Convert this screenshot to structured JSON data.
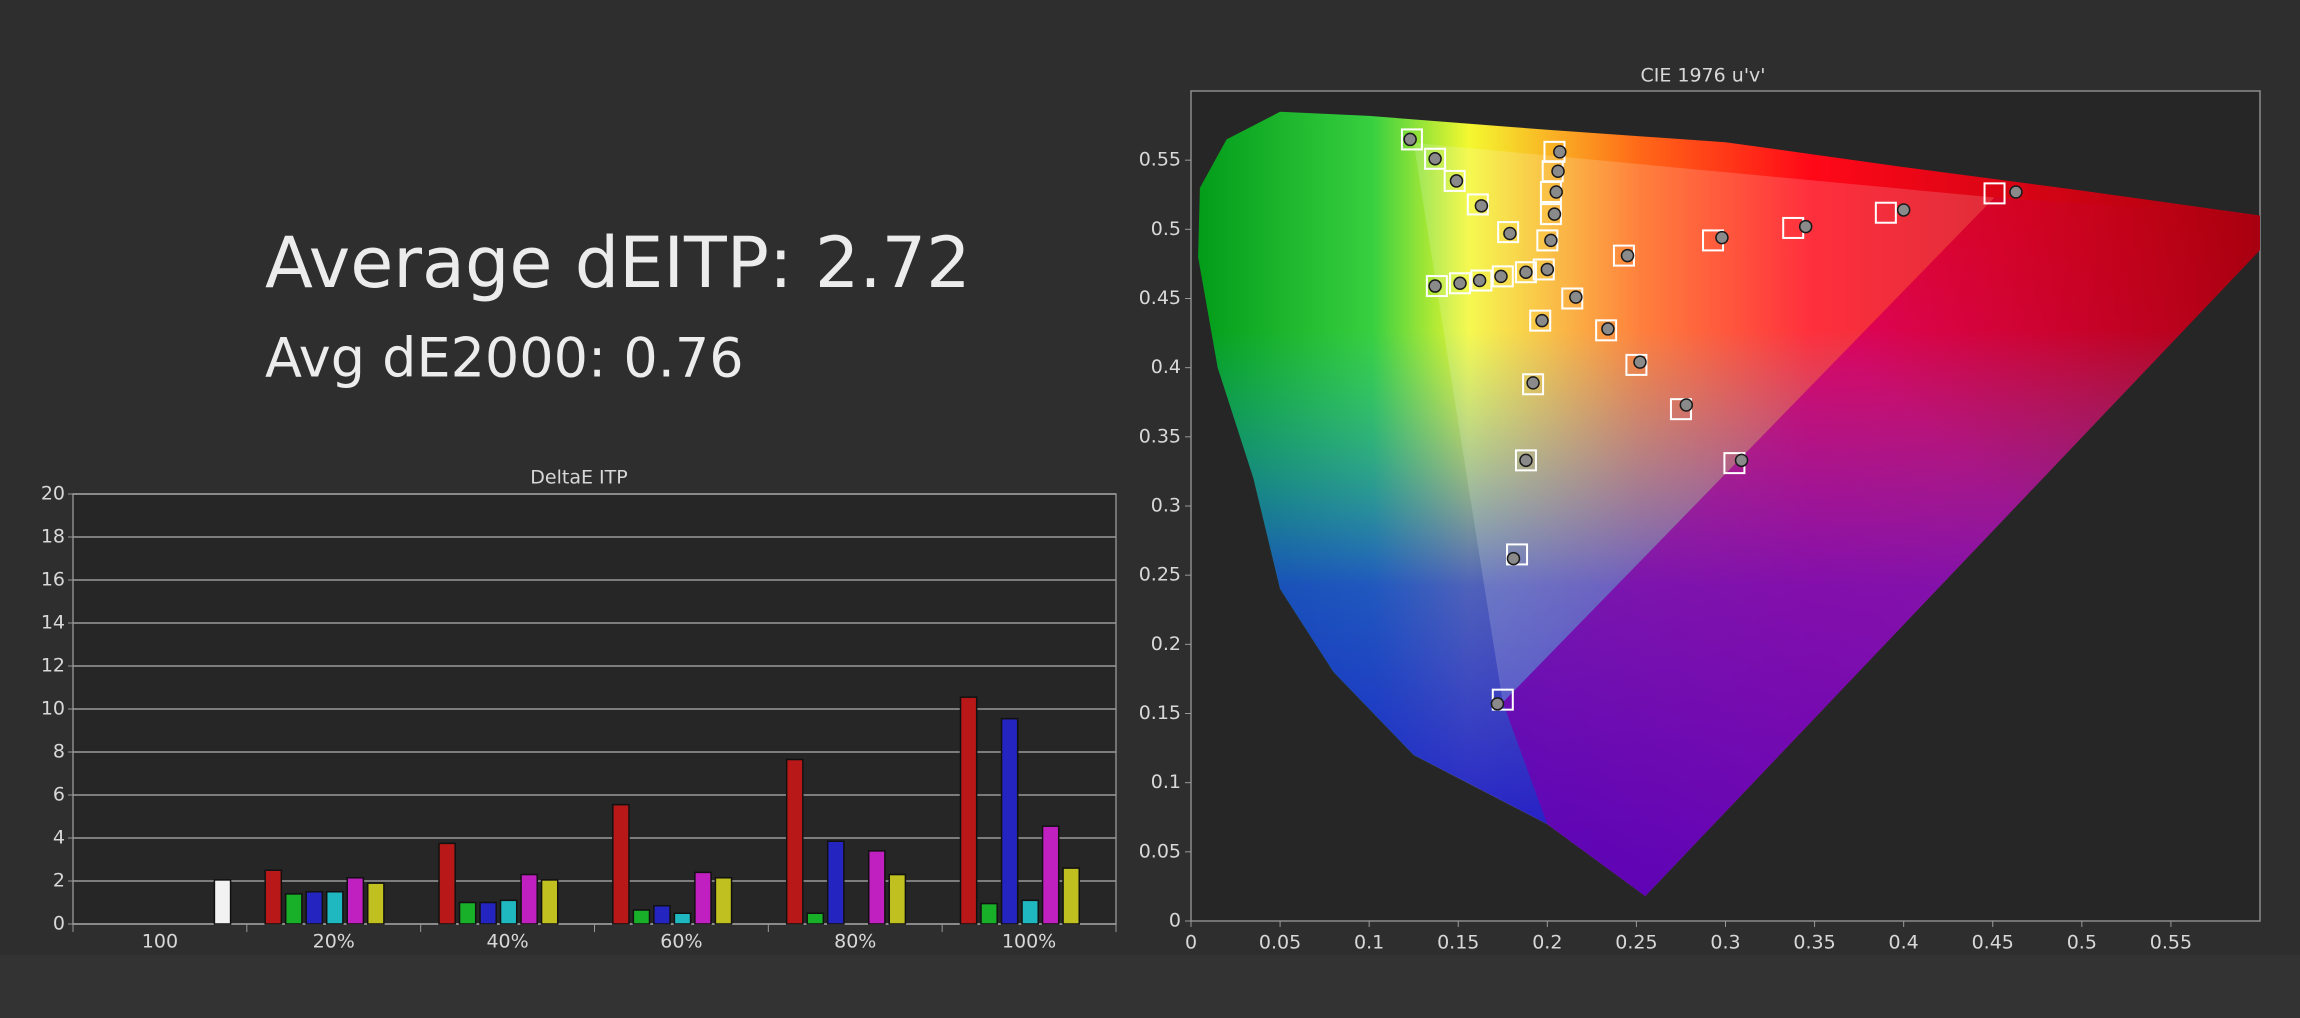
{
  "headline": {
    "average_deitp": "Average dEITP: 2.72",
    "avg_de2000": "Avg dE2000: 0.76"
  },
  "chart_data": [
    {
      "type": "bar",
      "title": "DeltaE ITP",
      "categories": [
        "100",
        "20%",
        "40%",
        "60%",
        "80%",
        "100%"
      ],
      "series": [
        {
          "color": "#b81818",
          "values": [
            null,
            2.5,
            3.75,
            5.55,
            7.65,
            10.55
          ]
        },
        {
          "color": "#18b028",
          "values": [
            null,
            1.4,
            1.0,
            0.65,
            0.5,
            0.95
          ]
        },
        {
          "color": "#2424c0",
          "values": [
            null,
            1.5,
            1.0,
            0.85,
            3.85,
            9.55
          ]
        },
        {
          "color": "#20b8c0",
          "values": [
            null,
            1.5,
            1.1,
            0.5,
            null,
            1.1
          ]
        },
        {
          "color": "#c020c0",
          "values": [
            null,
            2.15,
            2.3,
            2.4,
            3.4,
            4.55
          ]
        },
        {
          "color": "#c0c020",
          "values": [
            null,
            1.9,
            2.05,
            2.15,
            2.3,
            2.6
          ]
        },
        {
          "color": "#f2f2f2",
          "values": [
            2.05,
            null,
            null,
            null,
            null,
            null
          ]
        }
      ],
      "ylim": [
        0,
        20
      ],
      "yticks": [
        0,
        2,
        4,
        6,
        8,
        10,
        12,
        14,
        16,
        18,
        20
      ],
      "grid": true
    },
    {
      "type": "scatter",
      "title": "CIE 1976 u'v'",
      "xlim": [
        0,
        0.6
      ],
      "ylim": [
        0,
        0.6
      ],
      "xticks": [
        0,
        0.05,
        0.1,
        0.15,
        0.2,
        0.25,
        0.3,
        0.35,
        0.4,
        0.45,
        0.5,
        0.55
      ],
      "yticks": [
        0,
        0.05,
        0.1,
        0.15,
        0.2,
        0.25,
        0.3,
        0.35,
        0.4,
        0.45,
        0.5,
        0.55
      ],
      "grid": false,
      "series": [
        {
          "marker": "square",
          "color": "#ffffff",
          "x": [
            0.124,
            0.137,
            0.148,
            0.161,
            0.178,
            0.198,
            0.204,
            0.203,
            0.202,
            0.202,
            0.2,
            0.138,
            0.151,
            0.163,
            0.175,
            0.188,
            0.243,
            0.293,
            0.338,
            0.39,
            0.451,
            0.214,
            0.233,
            0.25,
            0.275,
            0.305,
            0.196,
            0.192,
            0.188,
            0.183,
            0.175
          ],
          "values": [
            0.565,
            0.551,
            0.535,
            0.518,
            0.498,
            0.471,
            0.556,
            0.542,
            0.527,
            0.511,
            0.492,
            0.459,
            0.461,
            0.463,
            0.466,
            0.469,
            0.481,
            0.492,
            0.501,
            0.512,
            0.526,
            0.45,
            0.427,
            0.402,
            0.37,
            0.331,
            0.434,
            0.388,
            0.333,
            0.265,
            0.16
          ]
        },
        {
          "marker": "circle",
          "color": "#8a8a8a",
          "x": [
            0.123,
            0.137,
            0.149,
            0.163,
            0.179,
            0.2,
            0.207,
            0.206,
            0.205,
            0.204,
            0.202,
            0.137,
            0.151,
            0.162,
            0.174,
            0.188,
            0.245,
            0.298,
            0.345,
            0.4,
            0.463,
            0.216,
            0.234,
            0.252,
            0.278,
            0.309,
            0.197,
            0.192,
            0.188,
            0.181,
            0.172
          ],
          "values": [
            0.565,
            0.551,
            0.535,
            0.517,
            0.497,
            0.471,
            0.556,
            0.542,
            0.527,
            0.511,
            0.492,
            0.459,
            0.461,
            0.463,
            0.466,
            0.469,
            0.481,
            0.494,
            0.502,
            0.514,
            0.527,
            0.451,
            0.428,
            0.404,
            0.373,
            0.333,
            0.434,
            0.389,
            0.333,
            0.262,
            0.157
          ]
        }
      ]
    }
  ]
}
